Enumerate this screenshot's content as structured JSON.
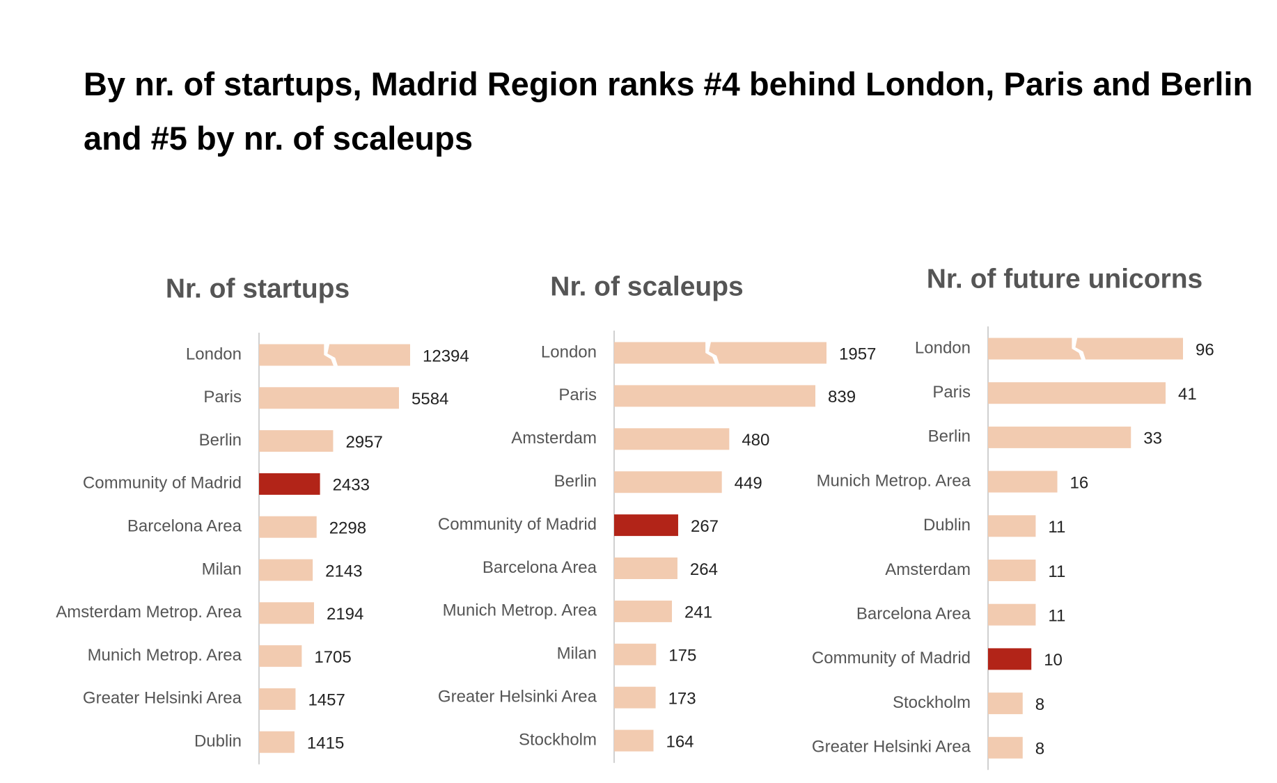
{
  "title": "By nr. of startups, Madrid Region ranks #4 behind London, Paris and Berlin and #5 by nr. of scaleups",
  "chart_data": [
    {
      "type": "bar",
      "orientation": "horizontal",
      "title": "Nr. of startups",
      "categories": [
        "London",
        "Paris",
        "Berlin",
        "Community of Madrid",
        "Barcelona Area",
        "Milan",
        "Amsterdam Metrop. Area",
        "Munich Metrop. Area",
        "Greater Helsinki Area",
        "Dublin"
      ],
      "values": [
        12394,
        5584,
        2957,
        2433,
        2298,
        2143,
        2194,
        1705,
        1457,
        1415
      ],
      "colors": [
        "#f2cbb0",
        "#f2cbb0",
        "#f2cbb0",
        "#b22418",
        "#f2cbb0",
        "#f2cbb0",
        "#f2cbb0",
        "#f2cbb0",
        "#f2cbb0",
        "#f2cbb0"
      ]
    },
    {
      "type": "bar",
      "orientation": "horizontal",
      "title": "Nr. of scaleups",
      "categories": [
        "London",
        "Paris",
        "Amsterdam",
        "Berlin",
        "Community of Madrid",
        "Barcelona Area",
        "Munich Metrop. Area",
        "Milan",
        "Greater Helsinki Area",
        "Stockholm"
      ],
      "values": [
        1957,
        839,
        480,
        449,
        267,
        264,
        241,
        175,
        173,
        164
      ],
      "colors": [
        "#f2cbb0",
        "#f2cbb0",
        "#f2cbb0",
        "#f2cbb0",
        "#b22418",
        "#f2cbb0",
        "#f2cbb0",
        "#f2cbb0",
        "#f2cbb0",
        "#f2cbb0"
      ]
    },
    {
      "type": "bar",
      "orientation": "horizontal",
      "title": "Nr. of future unicorns",
      "categories": [
        "London",
        "Paris",
        "Berlin",
        "Munich Metrop. Area",
        "Dublin",
        "Amsterdam",
        "Barcelona Area",
        "Community of Madrid",
        "Stockholm",
        "Greater Helsinki Area"
      ],
      "values": [
        96,
        41,
        33,
        16,
        11,
        11,
        11,
        10,
        8,
        8
      ],
      "colors": [
        "#f2cbb0",
        "#f2cbb0",
        "#f2cbb0",
        "#f2cbb0",
        "#f2cbb0",
        "#f2cbb0",
        "#f2cbb0",
        "#b22418",
        "#f2cbb0",
        "#f2cbb0"
      ]
    }
  ]
}
